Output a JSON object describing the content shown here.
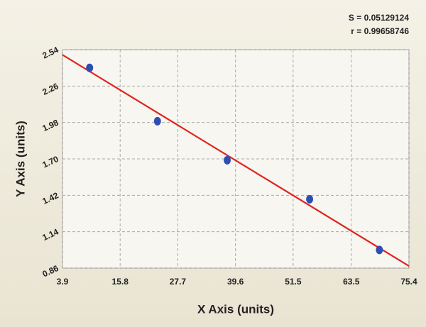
{
  "chart_data": {
    "type": "scatter",
    "annotations": [
      "S = 0.05129124",
      "r = 0.99658746"
    ],
    "x_label": "X Axis (units)",
    "y_label": "Y Axis (units)",
    "x": [
      9.5,
      23.5,
      37.9,
      54.9,
      69.3
    ],
    "values": [
      2.4,
      1.99,
      1.69,
      1.39,
      1.0
    ],
    "color": "#2f4db3",
    "fit": {
      "x": [
        3.9,
        75.4
      ],
      "y": [
        2.5,
        0.876
      ],
      "color": "#e0241e"
    },
    "xlim": [
      3.9,
      75.4
    ],
    "ylim": [
      0.86,
      2.54
    ],
    "xticks": [
      3.9,
      15.8,
      27.7,
      39.6,
      51.5,
      63.5,
      75.4
    ],
    "yticks": [
      0.86,
      1.14,
      1.42,
      {
        "value": 1.7,
        "label": "1.70"
      },
      1.98,
      2.26,
      2.54
    ],
    "grid": true
  }
}
